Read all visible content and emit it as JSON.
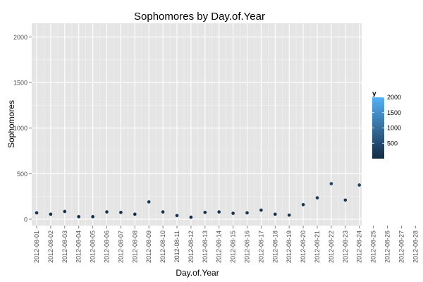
{
  "chart_data": {
    "type": "scatter",
    "title": "Sophomores by Day.of.Year",
    "xlabel": "Day.of.Year",
    "ylabel": "Sophomores",
    "x_ticks": [
      "2012-08-01",
      "2012-08-02",
      "2012-08-03",
      "2012-08-04",
      "2012-08-05",
      "2012-08-06",
      "2012-08-07",
      "2012-08-08",
      "2012-08-09",
      "2012-08-10",
      "2012-08-11",
      "2012-08-12",
      "2012-08-13",
      "2012-08-14",
      "2012-08-15",
      "2012-08-16",
      "2012-08-17",
      "2012-08-18",
      "2012-08-19",
      "2012-08-20",
      "2012-08-21",
      "2012-08-22",
      "2012-08-23",
      "2012-08-24",
      "2012-08-25",
      "2012-08-26",
      "2012-08-27",
      "2012-08-28"
    ],
    "y_ticks": [
      0,
      500,
      1000,
      1500,
      2000
    ],
    "ylim": [
      -70,
      2150
    ],
    "grid": true,
    "legend": {
      "title": "y",
      "position": "right",
      "breaks": [
        2000,
        1500,
        1000,
        500
      ],
      "range": [
        0,
        2000
      ],
      "color_low": "#132B43",
      "color_high": "#56B1F7"
    },
    "points": [
      {
        "x": "2012-08-01",
        "y": 70
      },
      {
        "x": "2012-08-02",
        "y": 55
      },
      {
        "x": "2012-08-03",
        "y": 85
      },
      {
        "x": "2012-08-04",
        "y": 28
      },
      {
        "x": "2012-08-05",
        "y": 28
      },
      {
        "x": "2012-08-06",
        "y": 80
      },
      {
        "x": "2012-08-07",
        "y": 75
      },
      {
        "x": "2012-08-08",
        "y": 55
      },
      {
        "x": "2012-08-09",
        "y": 190
      },
      {
        "x": "2012-08-10",
        "y": 80
      },
      {
        "x": "2012-08-11",
        "y": 40
      },
      {
        "x": "2012-08-12",
        "y": 22
      },
      {
        "x": "2012-08-13",
        "y": 75
      },
      {
        "x": "2012-08-14",
        "y": 80
      },
      {
        "x": "2012-08-15",
        "y": 65
      },
      {
        "x": "2012-08-16",
        "y": 70
      },
      {
        "x": "2012-08-17",
        "y": 100
      },
      {
        "x": "2012-08-18",
        "y": 55
      },
      {
        "x": "2012-08-19",
        "y": 45
      },
      {
        "x": "2012-08-20",
        "y": 160
      },
      {
        "x": "2012-08-21",
        "y": 235
      },
      {
        "x": "2012-08-22",
        "y": 390
      },
      {
        "x": "2012-08-23",
        "y": 210
      },
      {
        "x": "2012-08-24",
        "y": 375
      }
    ]
  }
}
